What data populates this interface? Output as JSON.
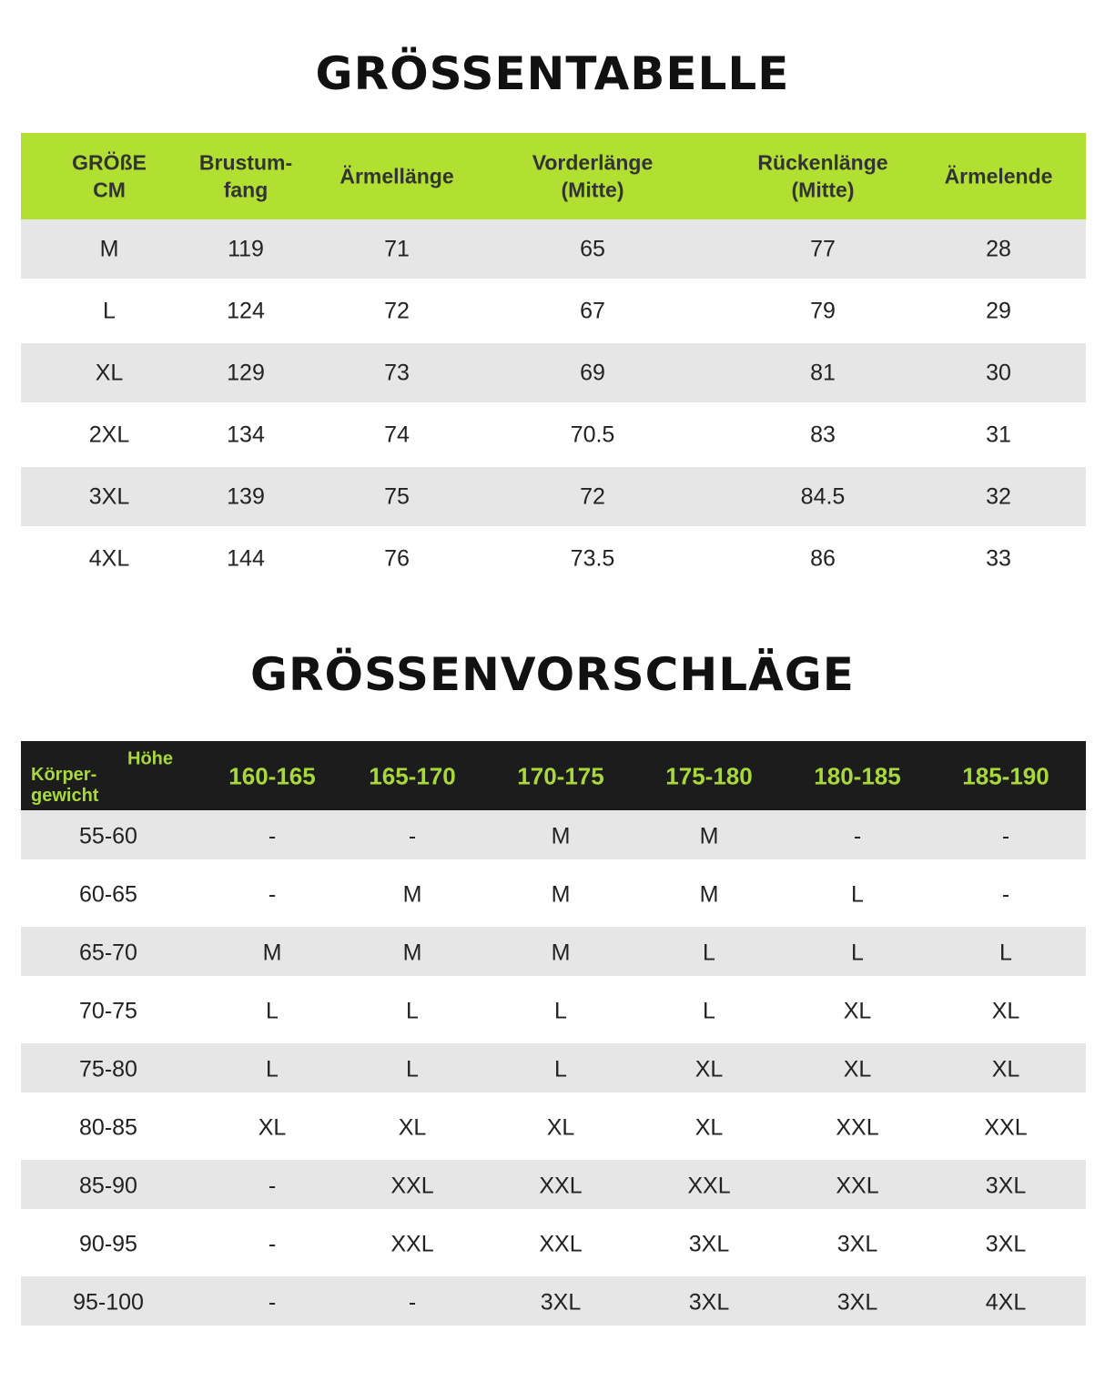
{
  "size_chart": {
    "title": "GRÖSSENTABELLE",
    "header": [
      [
        "GRÖßE",
        "CM"
      ],
      [
        "Brustum-",
        "fang"
      ],
      [
        "Ärmellänge"
      ],
      [
        "Vorderlänge",
        "(Mitte)"
      ],
      [
        "Rückenlänge",
        "(Mitte)"
      ],
      [
        "Ärmelende"
      ]
    ],
    "rows": [
      [
        "M",
        "119",
        "71",
        "65",
        "77",
        "28"
      ],
      [
        "L",
        "124",
        "72",
        "67",
        "79",
        "29"
      ],
      [
        "XL",
        "129",
        "73",
        "69",
        "81",
        "30"
      ],
      [
        "2XL",
        "134",
        "74",
        "70.5",
        "83",
        "31"
      ],
      [
        "3XL",
        "139",
        "75",
        "72",
        "84.5",
        "32"
      ],
      [
        "4XL",
        "144",
        "76",
        "73.5",
        "86",
        "33"
      ]
    ]
  },
  "size_suggestions": {
    "title": "GRÖSSENVORSCHLÄGE",
    "corner": {
      "height": "Höhe",
      "weight": [
        "Körper-",
        "gewicht"
      ]
    },
    "header": [
      "160-165",
      "165-170",
      "170-175",
      "175-180",
      "180-185",
      "185-190"
    ],
    "rows": [
      [
        "55-60",
        "-",
        "-",
        "M",
        "M",
        "-",
        "-"
      ],
      [
        "60-65",
        "-",
        "M",
        "M",
        "M",
        "L",
        "-"
      ],
      [
        "65-70",
        "M",
        "M",
        "M",
        "L",
        "L",
        "L"
      ],
      [
        "70-75",
        "L",
        "L",
        "L",
        "L",
        "XL",
        "XL"
      ],
      [
        "75-80",
        "L",
        "L",
        "L",
        "XL",
        "XL",
        "XL"
      ],
      [
        "80-85",
        "XL",
        "XL",
        "XL",
        "XL",
        "XXL",
        "XXL"
      ],
      [
        "85-90",
        "-",
        "XXL",
        "XXL",
        "XXL",
        "XXL",
        "3XL"
      ],
      [
        "90-95",
        "-",
        "XXL",
        "XXL",
        "3XL",
        "3XL",
        "3XL"
      ],
      [
        "95-100",
        "-",
        "-",
        "3XL",
        "3XL",
        "3XL",
        "4XL"
      ]
    ]
  }
}
